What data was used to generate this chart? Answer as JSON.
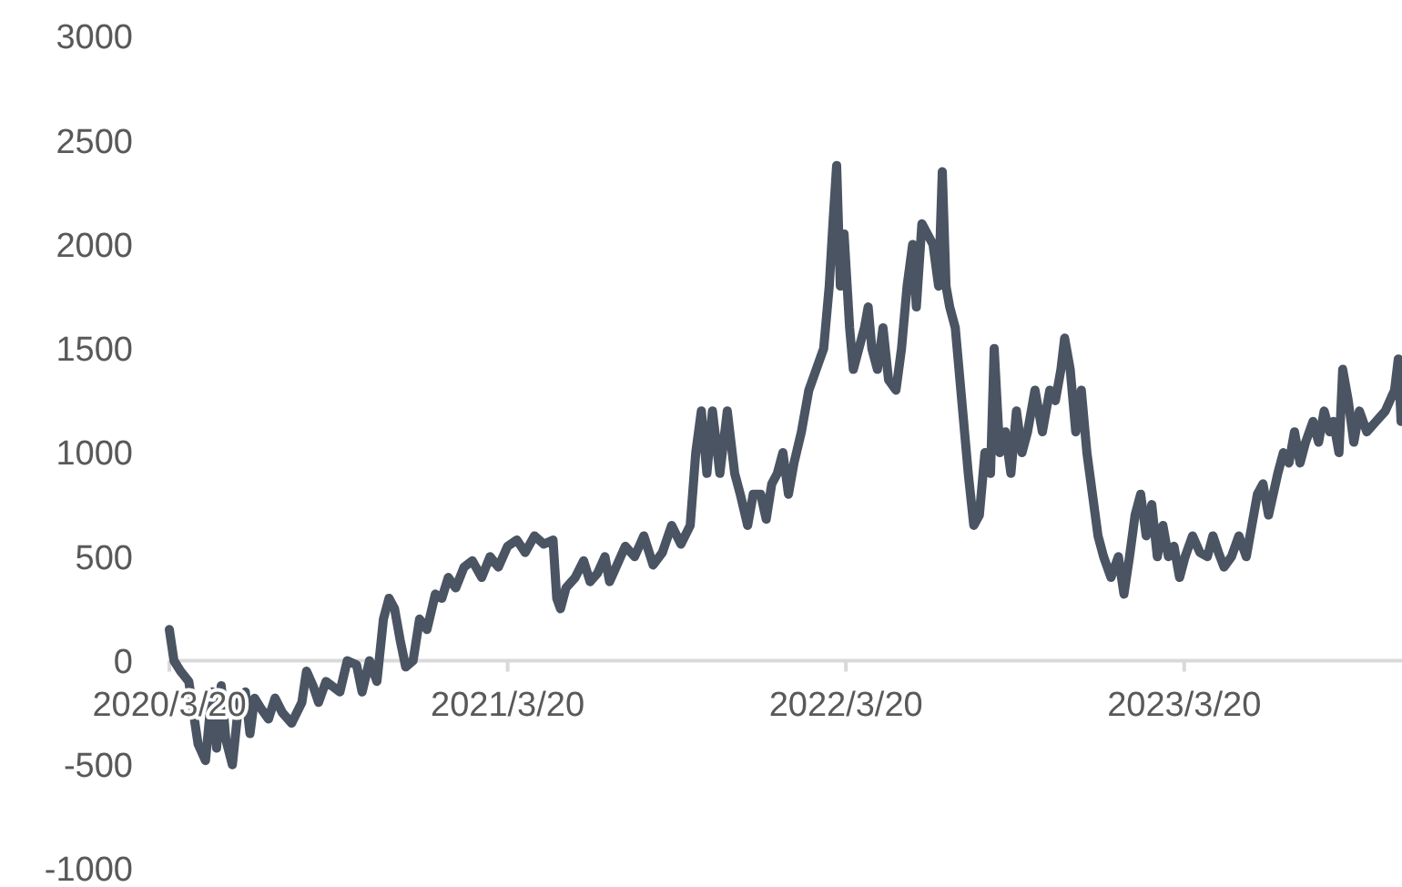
{
  "chart_data": {
    "type": "line",
    "x": [
      "2020-03-20",
      "2020-03-25",
      "2020-04-01",
      "2020-04-10",
      "2020-04-20",
      "2020-04-28",
      "2020-05-05",
      "2020-05-10",
      "2020-05-15",
      "2020-05-20",
      "2020-05-27",
      "2020-06-03",
      "2020-06-10",
      "2020-06-15",
      "2020-06-20",
      "2020-06-27",
      "2020-07-05",
      "2020-07-12",
      "2020-07-20",
      "2020-07-30",
      "2020-08-10",
      "2020-08-15",
      "2020-08-22",
      "2020-08-28",
      "2020-09-05",
      "2020-09-20",
      "2020-09-28",
      "2020-10-08",
      "2020-10-14",
      "2020-10-22",
      "2020-10-30",
      "2020-11-06",
      "2020-11-12",
      "2020-11-18",
      "2020-11-24",
      "2020-11-30",
      "2020-12-08",
      "2020-12-15",
      "2020-12-23",
      "2021-01-01",
      "2021-01-08",
      "2021-01-15",
      "2021-01-23",
      "2021-02-01",
      "2021-02-10",
      "2021-02-20",
      "2021-03-01",
      "2021-03-10",
      "2021-03-20",
      "2021-03-30",
      "2021-04-08",
      "2021-04-18",
      "2021-04-28",
      "2021-05-08",
      "2021-05-12",
      "2021-05-16",
      "2021-05-22",
      "2021-06-01",
      "2021-06-10",
      "2021-06-17",
      "2021-06-25",
      "2021-07-03",
      "2021-07-08",
      "2021-07-15",
      "2021-07-25",
      "2021-08-04",
      "2021-08-14",
      "2021-08-24",
      "2021-09-03",
      "2021-09-13",
      "2021-09-23",
      "2021-10-03",
      "2021-10-09",
      "2021-10-15",
      "2021-10-21",
      "2021-10-27",
      "2021-11-04",
      "2021-11-12",
      "2021-11-20",
      "2021-11-26",
      "2021-12-04",
      "2021-12-10",
      "2021-12-18",
      "2021-12-24",
      "2021-12-30",
      "2022-01-05",
      "2022-01-11",
      "2022-01-17",
      "2022-01-23",
      "2022-01-31",
      "2022-02-08",
      "2022-02-16",
      "2022-02-24",
      "2022-03-02",
      "2022-03-06",
      "2022-03-10",
      "2022-03-14",
      "2022-03-18",
      "2022-03-24",
      "2022-03-28",
      "2022-04-03",
      "2022-04-09",
      "2022-04-13",
      "2022-04-17",
      "2022-04-23",
      "2022-04-29",
      "2022-05-05",
      "2022-05-13",
      "2022-05-19",
      "2022-05-25",
      "2022-05-31",
      "2022-06-04",
      "2022-06-10",
      "2022-06-16",
      "2022-06-22",
      "2022-06-28",
      "2022-07-02",
      "2022-07-06",
      "2022-07-10",
      "2022-07-16",
      "2022-07-24",
      "2022-07-30",
      "2022-08-05",
      "2022-08-11",
      "2022-08-17",
      "2022-08-23",
      "2022-08-27",
      "2022-09-02",
      "2022-09-08",
      "2022-09-14",
      "2022-09-20",
      "2022-09-26",
      "2022-10-02",
      "2022-10-10",
      "2022-10-18",
      "2022-10-26",
      "2022-11-01",
      "2022-11-07",
      "2022-11-11",
      "2022-11-17",
      "2022-11-23",
      "2022-11-29",
      "2022-12-05",
      "2022-12-11",
      "2022-12-17",
      "2022-12-23",
      "2022-12-31",
      "2023-01-08",
      "2023-01-14",
      "2023-01-20",
      "2023-01-26",
      "2023-02-01",
      "2023-02-07",
      "2023-02-13",
      "2023-02-19",
      "2023-02-25",
      "2023-03-03",
      "2023-03-09",
      "2023-03-15",
      "2023-03-21",
      "2023-03-29",
      "2023-04-06",
      "2023-04-14",
      "2023-04-20",
      "2023-04-26",
      "2023-05-02",
      "2023-05-10",
      "2023-05-18",
      "2023-05-26",
      "2023-06-01",
      "2023-06-07",
      "2023-06-13",
      "2023-06-19",
      "2023-06-29",
      "2023-07-05",
      "2023-07-11",
      "2023-07-17",
      "2023-07-23",
      "2023-07-29",
      "2023-08-06",
      "2023-08-12",
      "2023-08-18",
      "2023-08-24",
      "2023-08-28",
      "2023-09-03",
      "2023-09-07",
      "2023-09-13",
      "2023-09-19",
      "2023-09-25",
      "2023-10-03",
      "2023-10-13",
      "2023-10-23",
      "2023-11-02",
      "2023-11-06",
      "2023-11-09"
    ],
    "series": [
      {
        "color": "#4a5462",
        "values": [
          150,
          0,
          -50,
          -100,
          -400,
          -480,
          -150,
          -420,
          -120,
          -380,
          -500,
          -200,
          -150,
          -350,
          -180,
          -230,
          -280,
          -180,
          -250,
          -300,
          -200,
          -50,
          -120,
          -200,
          -100,
          -150,
          0,
          -20,
          -150,
          0,
          -100,
          200,
          300,
          250,
          100,
          -30,
          0,
          200,
          150,
          320,
          300,
          400,
          350,
          450,
          480,
          400,
          500,
          450,
          550,
          580,
          520,
          600,
          560,
          580,
          300,
          250,
          350,
          400,
          480,
          380,
          420,
          500,
          380,
          450,
          550,
          500,
          600,
          460,
          520,
          650,
          560,
          650,
          1000,
          1200,
          900,
          1200,
          900,
          1200,
          900,
          800,
          650,
          800,
          800,
          680,
          850,
          900,
          1000,
          800,
          950,
          1100,
          1300,
          1400,
          1500,
          1800,
          2100,
          2380,
          1800,
          2050,
          1600,
          1400,
          1500,
          1600,
          1700,
          1500,
          1400,
          1600,
          1350,
          1300,
          1500,
          1800,
          2000,
          1700,
          2100,
          2050,
          2000,
          1800,
          2350,
          1800,
          1700,
          1600,
          1200,
          900,
          650,
          700,
          1000,
          900,
          1500,
          1000,
          1100,
          900,
          1200,
          1000,
          1100,
          1300,
          1100,
          1300,
          1250,
          1400,
          1550,
          1400,
          1100,
          1300,
          1000,
          800,
          600,
          500,
          400,
          500,
          320,
          500,
          700,
          800,
          600,
          750,
          500,
          650,
          500,
          550,
          400,
          500,
          600,
          520,
          500,
          600,
          520,
          450,
          500,
          600,
          500,
          650,
          800,
          850,
          700,
          900,
          1000,
          950,
          1100,
          950,
          1050,
          1150,
          1050,
          1200,
          1100,
          1150,
          1000,
          1400,
          1250,
          1050,
          1200,
          1100,
          1150,
          1200,
          1300,
          1450,
          1150
        ]
      }
    ],
    "xlim": [
      "2020-03-20",
      "2023-11-10"
    ],
    "xticks": [
      {
        "value": "2020-03-20",
        "label": "2020/3/20"
      },
      {
        "value": "2021-03-20",
        "label": "2021/3/20"
      },
      {
        "value": "2022-03-20",
        "label": "2022/3/20"
      },
      {
        "value": "2023-03-20",
        "label": "2023/3/20"
      }
    ],
    "ylim": [
      -1000,
      3000
    ],
    "yticks": [
      -1000,
      -500,
      0,
      500,
      1000,
      1500,
      2000,
      2500,
      3000
    ],
    "line_style": "solid",
    "marker": "none"
  }
}
